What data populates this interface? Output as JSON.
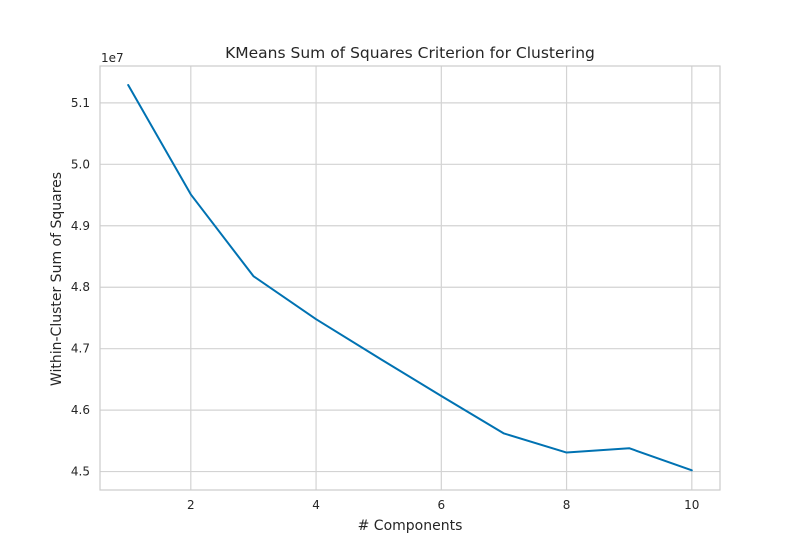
{
  "chart_data": {
    "type": "line",
    "title": "KMeans Sum of Squares Criterion for Clustering",
    "xlabel": "# Components",
    "ylabel": "Within-Cluster Sum of Squares",
    "y_offset_label": "1e7",
    "xlim": [
      0.55,
      10.45
    ],
    "ylim": [
      4.47,
      5.16
    ],
    "x_ticks": [
      2,
      4,
      6,
      8,
      10
    ],
    "x_tick_labels": [
      "2",
      "4",
      "6",
      "8",
      "10"
    ],
    "y_ticks": [
      4.5,
      4.6,
      4.7,
      4.8,
      4.9,
      5.0,
      5.1
    ],
    "y_tick_labels": [
      "4.5",
      "4.6",
      "4.7",
      "4.8",
      "4.9",
      "5.0",
      "5.1"
    ],
    "grid": true,
    "series": [
      {
        "color": "#0072B2",
        "x": [
          1,
          2,
          3,
          4,
          5,
          6,
          7,
          8,
          9,
          10
        ],
        "y": [
          5.129,
          4.951,
          4.818,
          4.748,
          4.685,
          4.623,
          4.562,
          4.531,
          4.538,
          4.502
        ]
      }
    ]
  }
}
